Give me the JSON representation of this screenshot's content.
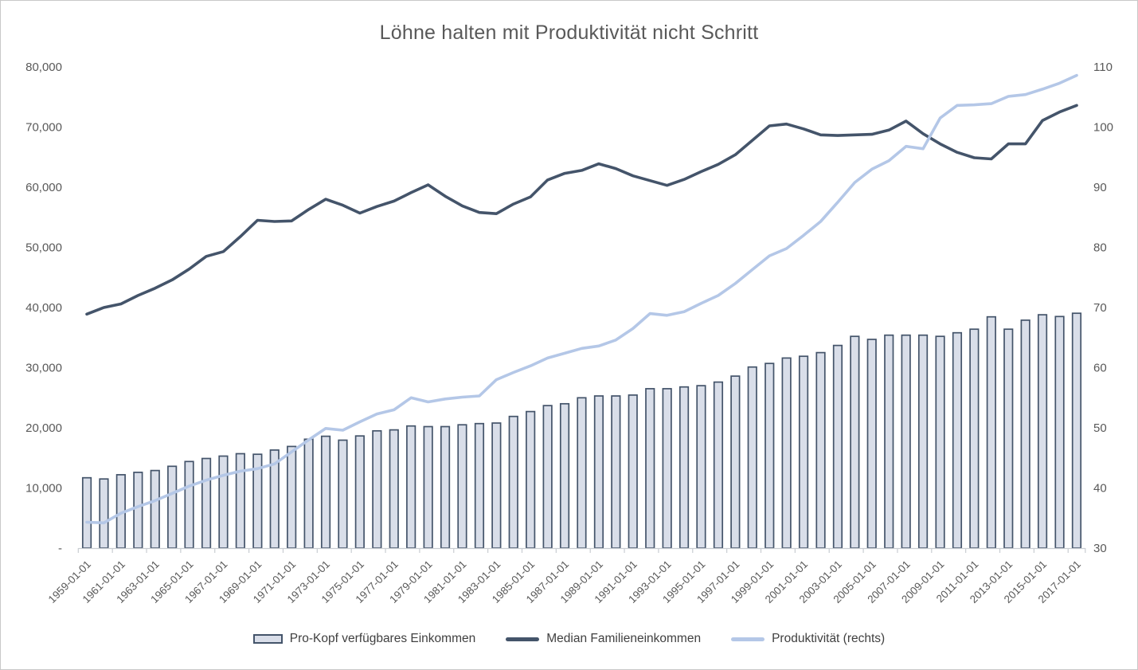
{
  "chart_data": {
    "type": "combo-bar-line",
    "title": "Löhne halten mit Produktivität nicht Schritt",
    "start_year": 1959,
    "x_tick_labels": [
      "1959-01-01",
      "1961-01-01",
      "1963-01-01",
      "1965-01-01",
      "1967-01-01",
      "1969-01-01",
      "1971-01-01",
      "1973-01-01",
      "1975-01-01",
      "1977-01-01",
      "1979-01-01",
      "1981-01-01",
      "1983-01-01",
      "1985-01-01",
      "1987-01-01",
      "1989-01-01",
      "1991-01-01",
      "1993-01-01",
      "1995-01-01",
      "1997-01-01",
      "1999-01-01",
      "2001-01-01",
      "2003-01-01",
      "2005-01-01",
      "2007-01-01",
      "2009-01-01",
      "2011-01-01",
      "2013-01-01",
      "2015-01-01",
      "2017-01-01"
    ],
    "left_axis": {
      "min": 0,
      "max": 80000,
      "step": 10000,
      "tick_labels": [
        "-",
        "10,000",
        "20,000",
        "30,000",
        "40,000",
        "50,000",
        "60,000",
        "70,000",
        "80,000"
      ]
    },
    "right_axis": {
      "min": 30,
      "max": 110,
      "step": 10,
      "tick_labels": [
        "30",
        "40",
        "50",
        "60",
        "70",
        "80",
        "90",
        "100",
        "110"
      ]
    },
    "legend_position": "bottom",
    "grid": false,
    "series": [
      {
        "name": "Pro-Kopf verfügbares Einkommen",
        "type": "bar",
        "axis": "left",
        "fill": "#D9DEE9",
        "stroke": "#44546A",
        "values": [
          11700,
          11500,
          12200,
          12600,
          12900,
          13600,
          14400,
          14900,
          15300,
          15700,
          15600,
          16300,
          16900,
          18100,
          18600,
          17950,
          18650,
          19500,
          19650,
          20300,
          20200,
          20200,
          20500,
          20700,
          20800,
          21900,
          22700,
          23700,
          24000,
          25000,
          25300,
          25300,
          25450,
          26500,
          26500,
          26800,
          27000,
          27600,
          28600,
          30100,
          30700,
          31600,
          31900,
          32500,
          33700,
          35200,
          34700,
          35400,
          35400,
          35400,
          35200,
          35800,
          36400,
          38450,
          36400,
          37900,
          38800,
          38500,
          39050
        ]
      },
      {
        "name": "Median Familieneinkommen",
        "type": "line",
        "axis": "left",
        "color": "#44546A",
        "values": [
          38900,
          40000,
          40600,
          42000,
          43200,
          44600,
          46400,
          48500,
          49300,
          51800,
          54500,
          54300,
          54400,
          56300,
          58000,
          57000,
          55700,
          56800,
          57700,
          59100,
          60400,
          58500,
          56900,
          55800,
          55600,
          57200,
          58400,
          61200,
          62300,
          62800,
          63900,
          63100,
          61900,
          61100,
          60300,
          61300,
          62600,
          63800,
          65400,
          67800,
          70200,
          70500,
          69700,
          68700,
          68600,
          68700,
          68800,
          69500,
          71000,
          68900,
          67200,
          65800,
          64900,
          64700,
          67200,
          67200,
          71100,
          72500,
          73600
        ]
      },
      {
        "name": "Produktivität (rechts)",
        "type": "line",
        "axis": "right",
        "color": "#B4C7E7",
        "values": [
          34.3,
          34.2,
          35.8,
          36.9,
          37.9,
          39.1,
          40.3,
          41.3,
          42.1,
          42.8,
          43.2,
          44.0,
          46.0,
          48.0,
          49.9,
          49.6,
          51.0,
          52.3,
          53.0,
          55.0,
          54.3,
          54.8,
          55.1,
          55.3,
          58.0,
          59.2,
          60.3,
          61.6,
          62.4,
          63.2,
          63.6,
          64.6,
          66.5,
          69.0,
          68.7,
          69.3,
          70.7,
          72.0,
          74.0,
          76.3,
          78.6,
          79.8,
          82.0,
          84.3,
          87.5,
          90.8,
          93.0,
          94.4,
          96.8,
          96.4,
          101.5,
          103.6,
          103.7,
          103.9,
          105.1,
          105.4,
          106.3,
          107.3,
          108.6
        ]
      }
    ]
  },
  "styles": {
    "title_color": "#595959",
    "axis_label_color": "#595959",
    "legend_text_color": "#404040",
    "axis_line_color": "#C9CDD2",
    "background": "#FFFFFF",
    "frame_border": "#C8C8C8"
  }
}
